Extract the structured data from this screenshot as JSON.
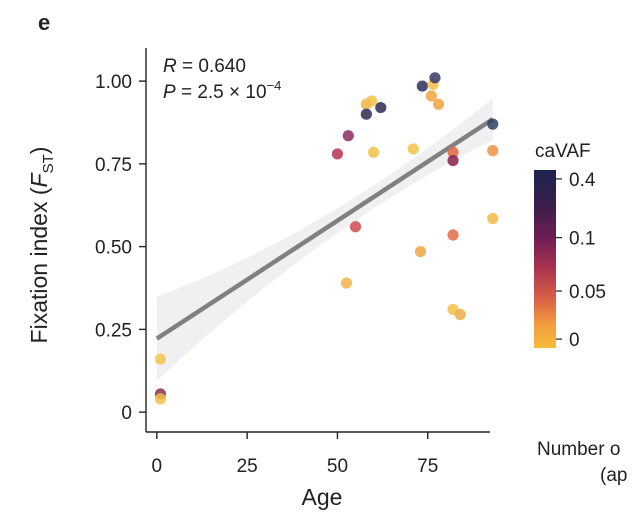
{
  "panel_letter": "e",
  "chart_data": {
    "type": "scatter",
    "xlabel": "Age",
    "ylabel_main": "Fixation index (",
    "ylabel_sym": "F",
    "ylabel_sub": "ST",
    "ylabel_close": ")",
    "xlim": [
      -3,
      95
    ],
    "ylim": [
      -0.06,
      1.1
    ],
    "xticks": [
      0,
      25,
      50,
      75
    ],
    "yticks": [
      0,
      0.25,
      0.5,
      0.75,
      1.0
    ],
    "ytick_labels": [
      "0",
      "0.25",
      "0.50",
      "0.75",
      "1.00"
    ],
    "stats": {
      "r_label": "R",
      "r_value": " = 0.640",
      "p_label": "P",
      "p_value": " = 2.5 × 10",
      "p_exponent": "−4"
    },
    "regression": {
      "x0": 0,
      "y0": 0.222,
      "x1": 93,
      "y1": 0.885,
      "color": "#808080"
    },
    "colorbar": {
      "title": "caVAF",
      "tick_labels": [
        "0.4",
        "0.1",
        "0.05",
        "0"
      ],
      "tick_fractions": [
        0.05,
        0.38,
        0.68,
        0.95
      ],
      "colors_top_to_bottom": [
        "#1d2451",
        "#3a1f4a",
        "#6d1d52",
        "#a8334f",
        "#d95f47",
        "#f09a3f",
        "#f5bd3a"
      ]
    },
    "second_legend_text": [
      "Number o",
      "(ap"
    ],
    "points": [
      {
        "x": 1,
        "y": 0.16,
        "c": "#f1c84a"
      },
      {
        "x": 1,
        "y": 0.055,
        "c": "#8c2f5a"
      },
      {
        "x": 1,
        "y": 0.04,
        "c": "#f2c247"
      },
      {
        "x": 50,
        "y": 0.78,
        "c": "#b8314f"
      },
      {
        "x": 53,
        "y": 0.835,
        "c": "#8c2b5e"
      },
      {
        "x": 52.5,
        "y": 0.39,
        "c": "#f2b44a"
      },
      {
        "x": 55,
        "y": 0.56,
        "c": "#cf4a4e"
      },
      {
        "x": 58,
        "y": 0.93,
        "c": "#f0b246"
      },
      {
        "x": 58,
        "y": 0.9,
        "c": "#2e2c4f"
      },
      {
        "x": 59.5,
        "y": 0.94,
        "c": "#f2c247"
      },
      {
        "x": 60,
        "y": 0.785,
        "c": "#f2c247"
      },
      {
        "x": 62,
        "y": 0.92,
        "c": "#2c2c54"
      },
      {
        "x": 71,
        "y": 0.795,
        "c": "#f2c24a"
      },
      {
        "x": 73,
        "y": 0.485,
        "c": "#f0a544"
      },
      {
        "x": 73.5,
        "y": 0.985,
        "c": "#2e2d58"
      },
      {
        "x": 76,
        "y": 0.955,
        "c": "#f2a53d"
      },
      {
        "x": 76.5,
        "y": 0.99,
        "c": "#f2c14a"
      },
      {
        "x": 77,
        "y": 1.01,
        "c": "#363b66"
      },
      {
        "x": 78,
        "y": 0.93,
        "c": "#f0a23e"
      },
      {
        "x": 82,
        "y": 0.785,
        "c": "#e2673f"
      },
      {
        "x": 82,
        "y": 0.76,
        "c": "#8a1e4b"
      },
      {
        "x": 82,
        "y": 0.535,
        "c": "#e06b42"
      },
      {
        "x": 82,
        "y": 0.31,
        "c": "#f2c247"
      },
      {
        "x": 84,
        "y": 0.295,
        "c": "#f0ad45"
      },
      {
        "x": 93,
        "y": 0.87,
        "c": "#2c3f62"
      },
      {
        "x": 93,
        "y": 0.79,
        "c": "#ec9340"
      },
      {
        "x": 93,
        "y": 0.585,
        "c": "#f2bb45"
      }
    ]
  }
}
